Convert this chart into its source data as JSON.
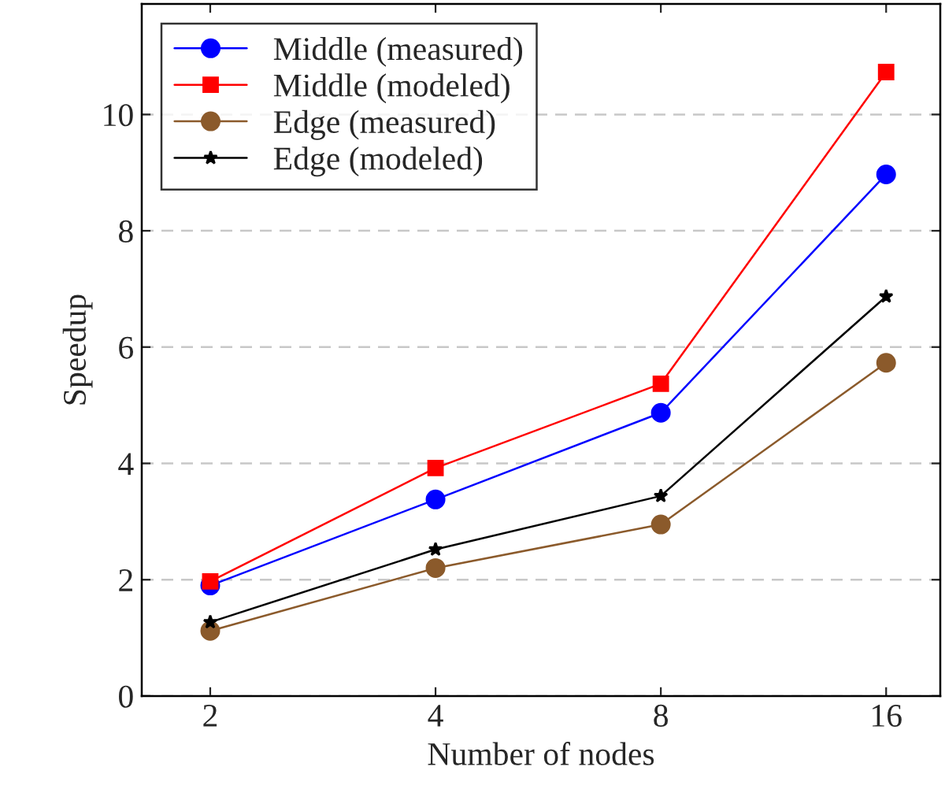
{
  "chart_data": {
    "type": "line",
    "xlabel": "Number of nodes",
    "ylabel": "Speedup",
    "x": [
      2,
      4,
      8,
      16
    ],
    "log": "x",
    "xlim": [
      1.62,
      18.9
    ],
    "xticks": [
      2,
      4,
      8,
      16
    ],
    "ylim": [
      0,
      11.9
    ],
    "yticks": [
      0,
      2,
      4,
      6,
      8,
      10
    ],
    "grid": "y",
    "legend": "top left",
    "series": [
      {
        "name": "Middle (measured)",
        "color": "#0000ff",
        "marker": "circle",
        "values": [
          1.9,
          3.38,
          4.87,
          8.97
        ]
      },
      {
        "name": "Middle (modeled)",
        "color": "#ff0000",
        "marker": "square",
        "values": [
          1.97,
          3.92,
          5.37,
          10.73
        ]
      },
      {
        "name": "Edge (measured)",
        "color": "#8b5a2b",
        "marker": "circle",
        "values": [
          1.12,
          2.2,
          2.95,
          5.73
        ]
      },
      {
        "name": "Edge (modeled)",
        "color": "#000000",
        "marker": "star",
        "values": [
          1.27,
          2.52,
          3.44,
          6.87
        ]
      }
    ]
  }
}
